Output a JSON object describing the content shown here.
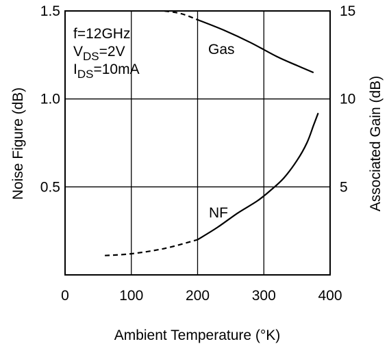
{
  "chart_data": {
    "type": "line",
    "xlabel": "Ambient Temperature (°K)",
    "ylabel": "Noise Figure (dB)",
    "y2label": "Associated Gain (dB)",
    "xlim": [
      0,
      400
    ],
    "ylim": [
      0,
      1.5
    ],
    "y2lim": [
      0,
      15
    ],
    "grid": true,
    "x_ticks": [
      "0",
      "100",
      "200",
      "300",
      "400"
    ],
    "y_ticks": [
      {
        "value": 0.5,
        "label": "0.5"
      },
      {
        "value": 1.0,
        "label": "1.0"
      },
      {
        "value": 1.5,
        "label": "1.5"
      }
    ],
    "y2_ticks": [
      {
        "value": 5,
        "label": "5"
      },
      {
        "value": 10,
        "label": "10"
      },
      {
        "value": 15,
        "label": "15"
      }
    ],
    "conditions": {
      "line1": "f=12GHz",
      "line2_main": "V",
      "line2_sub": "DS",
      "line2_rest": "=2V",
      "line3_main": "I",
      "line3_sub": "DS",
      "line3_rest": "=10mA"
    },
    "series": [
      {
        "name": "NF",
        "axis": "left",
        "measured": {
          "x": [
            200,
            230,
            260,
            290,
            310,
            330,
            350,
            365,
            375,
            382
          ],
          "y": [
            0.2,
            0.27,
            0.35,
            0.42,
            0.48,
            0.55,
            0.65,
            0.75,
            0.85,
            0.92
          ]
        },
        "extrapolated": {
          "x": [
            60,
            100,
            150,
            200
          ],
          "y": [
            0.11,
            0.12,
            0.15,
            0.2
          ]
        }
      },
      {
        "name": "Gas",
        "axis": "right",
        "measured": {
          "x": [
            200,
            240,
            280,
            320,
            350,
            375
          ],
          "y": [
            14.5,
            13.9,
            13.2,
            12.4,
            11.9,
            11.5
          ]
        },
        "extrapolated": {
          "x": [
            150,
            175,
            200
          ],
          "y": [
            15.0,
            14.85,
            14.5
          ]
        }
      }
    ]
  }
}
